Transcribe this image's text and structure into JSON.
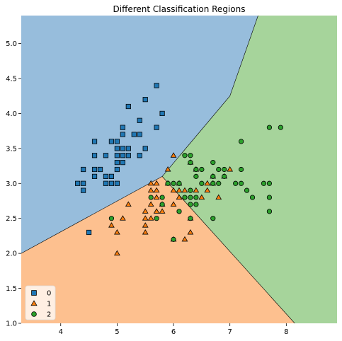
{
  "chart_data": {
    "type": "scatter",
    "title": "Different Classification Regions",
    "xlabel": "",
    "ylabel": "",
    "xlim": [
      3.3,
      8.9
    ],
    "ylim": [
      1.0,
      5.4
    ],
    "xticks": [
      4,
      5,
      6,
      7,
      8
    ],
    "yticks": [
      1.0,
      1.5,
      2.0,
      2.5,
      3.0,
      3.5,
      4.0,
      4.5,
      5.0
    ],
    "grid": false,
    "legend_position": "bottom-left",
    "regions": [
      {
        "class": "0",
        "color": "#97bddc",
        "polygon": [
          [
            3.3,
            5.4
          ],
          [
            7.5,
            5.4
          ],
          [
            7.0,
            4.25
          ],
          [
            5.8,
            3.1
          ],
          [
            3.3,
            2.0
          ]
        ]
      },
      {
        "class": "1",
        "color": "#fdc08f",
        "polygon": [
          [
            3.3,
            2.0
          ],
          [
            5.8,
            3.1
          ],
          [
            8.15,
            1.0
          ],
          [
            3.3,
            1.0
          ]
        ]
      },
      {
        "class": "2",
        "color": "#a6d49b",
        "polygon": [
          [
            7.5,
            5.4
          ],
          [
            8.9,
            5.4
          ],
          [
            8.9,
            1.0
          ],
          [
            8.15,
            1.0
          ],
          [
            5.8,
            3.1
          ],
          [
            7.0,
            4.25
          ]
        ]
      }
    ],
    "boundaries": [
      [
        [
          3.3,
          2.0
        ],
        [
          5.8,
          3.1
        ]
      ],
      [
        [
          5.8,
          3.1
        ],
        [
          7.0,
          4.25
        ],
        [
          7.5,
          5.4
        ]
      ],
      [
        [
          5.8,
          3.1
        ],
        [
          8.15,
          1.0
        ]
      ]
    ],
    "series": [
      {
        "name": "0",
        "marker": "square",
        "color": "#1f77b4",
        "points": [
          [
            4.3,
            3.0
          ],
          [
            4.4,
            2.9
          ],
          [
            4.4,
            3.0
          ],
          [
            4.4,
            3.2
          ],
          [
            4.5,
            2.3
          ],
          [
            4.6,
            3.1
          ],
          [
            4.6,
            3.2
          ],
          [
            4.6,
            3.4
          ],
          [
            4.6,
            3.6
          ],
          [
            4.7,
            3.2
          ],
          [
            4.8,
            3.0
          ],
          [
            4.8,
            3.1
          ],
          [
            4.8,
            3.4
          ],
          [
            4.9,
            3.0
          ],
          [
            4.9,
            3.1
          ],
          [
            4.9,
            3.6
          ],
          [
            5.0,
            3.0
          ],
          [
            5.0,
            3.2
          ],
          [
            5.0,
            3.3
          ],
          [
            5.0,
            3.4
          ],
          [
            5.0,
            3.5
          ],
          [
            5.0,
            3.6
          ],
          [
            5.1,
            3.3
          ],
          [
            5.1,
            3.4
          ],
          [
            5.1,
            3.5
          ],
          [
            5.1,
            3.7
          ],
          [
            5.1,
            3.8
          ],
          [
            5.2,
            3.4
          ],
          [
            5.2,
            3.5
          ],
          [
            5.2,
            4.1
          ],
          [
            5.3,
            3.7
          ],
          [
            5.4,
            3.4
          ],
          [
            5.4,
            3.7
          ],
          [
            5.4,
            3.9
          ],
          [
            5.5,
            3.5
          ],
          [
            5.5,
            4.2
          ],
          [
            5.7,
            3.8
          ],
          [
            5.7,
            4.4
          ],
          [
            5.8,
            4.0
          ]
        ]
      },
      {
        "name": "1",
        "marker": "triangle",
        "color": "#ff7f0e",
        "points": [
          [
            4.9,
            2.4
          ],
          [
            5.0,
            2.0
          ],
          [
            5.0,
            2.3
          ],
          [
            5.1,
            2.5
          ],
          [
            5.2,
            2.7
          ],
          [
            5.5,
            2.3
          ],
          [
            5.5,
            2.4
          ],
          [
            5.5,
            2.5
          ],
          [
            5.5,
            2.6
          ],
          [
            5.6,
            2.5
          ],
          [
            5.6,
            2.7
          ],
          [
            5.6,
            2.9
          ],
          [
            5.6,
            3.0
          ],
          [
            5.7,
            2.6
          ],
          [
            5.7,
            2.8
          ],
          [
            5.7,
            2.9
          ],
          [
            5.7,
            3.0
          ],
          [
            5.8,
            2.6
          ],
          [
            5.8,
            2.7
          ],
          [
            5.9,
            3.0
          ],
          [
            5.9,
            3.2
          ],
          [
            6.0,
            2.2
          ],
          [
            6.0,
            2.7
          ],
          [
            6.0,
            2.9
          ],
          [
            6.0,
            3.4
          ],
          [
            6.1,
            2.8
          ],
          [
            6.1,
            2.9
          ],
          [
            6.1,
            3.0
          ],
          [
            6.2,
            2.2
          ],
          [
            6.2,
            2.9
          ],
          [
            6.3,
            2.3
          ],
          [
            6.3,
            2.5
          ],
          [
            6.3,
            3.3
          ],
          [
            6.4,
            2.9
          ],
          [
            6.4,
            3.2
          ],
          [
            6.5,
            2.8
          ],
          [
            6.6,
            2.9
          ],
          [
            6.6,
            3.0
          ],
          [
            6.7,
            3.0
          ],
          [
            6.7,
            3.1
          ],
          [
            6.8,
            2.8
          ],
          [
            6.9,
            3.1
          ],
          [
            7.0,
            3.2
          ]
        ]
      },
      {
        "name": "2",
        "marker": "circle",
        "color": "#2ca02c",
        "points": [
          [
            4.9,
            2.5
          ],
          [
            5.6,
            2.8
          ],
          [
            5.7,
            2.5
          ],
          [
            5.8,
            2.7
          ],
          [
            5.8,
            2.8
          ],
          [
            5.9,
            3.0
          ],
          [
            6.0,
            2.2
          ],
          [
            6.0,
            3.0
          ],
          [
            6.1,
            2.6
          ],
          [
            6.1,
            3.0
          ],
          [
            6.2,
            2.8
          ],
          [
            6.2,
            3.4
          ],
          [
            6.3,
            2.5
          ],
          [
            6.3,
            2.7
          ],
          [
            6.3,
            2.8
          ],
          [
            6.3,
            2.9
          ],
          [
            6.3,
            3.3
          ],
          [
            6.3,
            3.4
          ],
          [
            6.4,
            2.7
          ],
          [
            6.4,
            2.8
          ],
          [
            6.4,
            3.1
          ],
          [
            6.4,
            3.2
          ],
          [
            6.5,
            3.0
          ],
          [
            6.5,
            3.2
          ],
          [
            6.7,
            2.5
          ],
          [
            6.7,
            3.0
          ],
          [
            6.7,
            3.1
          ],
          [
            6.7,
            3.3
          ],
          [
            6.8,
            3.0
          ],
          [
            6.8,
            3.2
          ],
          [
            6.9,
            3.1
          ],
          [
            6.9,
            3.2
          ],
          [
            7.1,
            3.0
          ],
          [
            7.2,
            3.0
          ],
          [
            7.2,
            3.2
          ],
          [
            7.2,
            3.6
          ],
          [
            7.3,
            2.9
          ],
          [
            7.4,
            2.8
          ],
          [
            7.6,
            3.0
          ],
          [
            7.7,
            2.6
          ],
          [
            7.7,
            2.8
          ],
          [
            7.7,
            3.0
          ],
          [
            7.7,
            3.8
          ],
          [
            7.9,
            3.8
          ]
        ]
      }
    ]
  }
}
